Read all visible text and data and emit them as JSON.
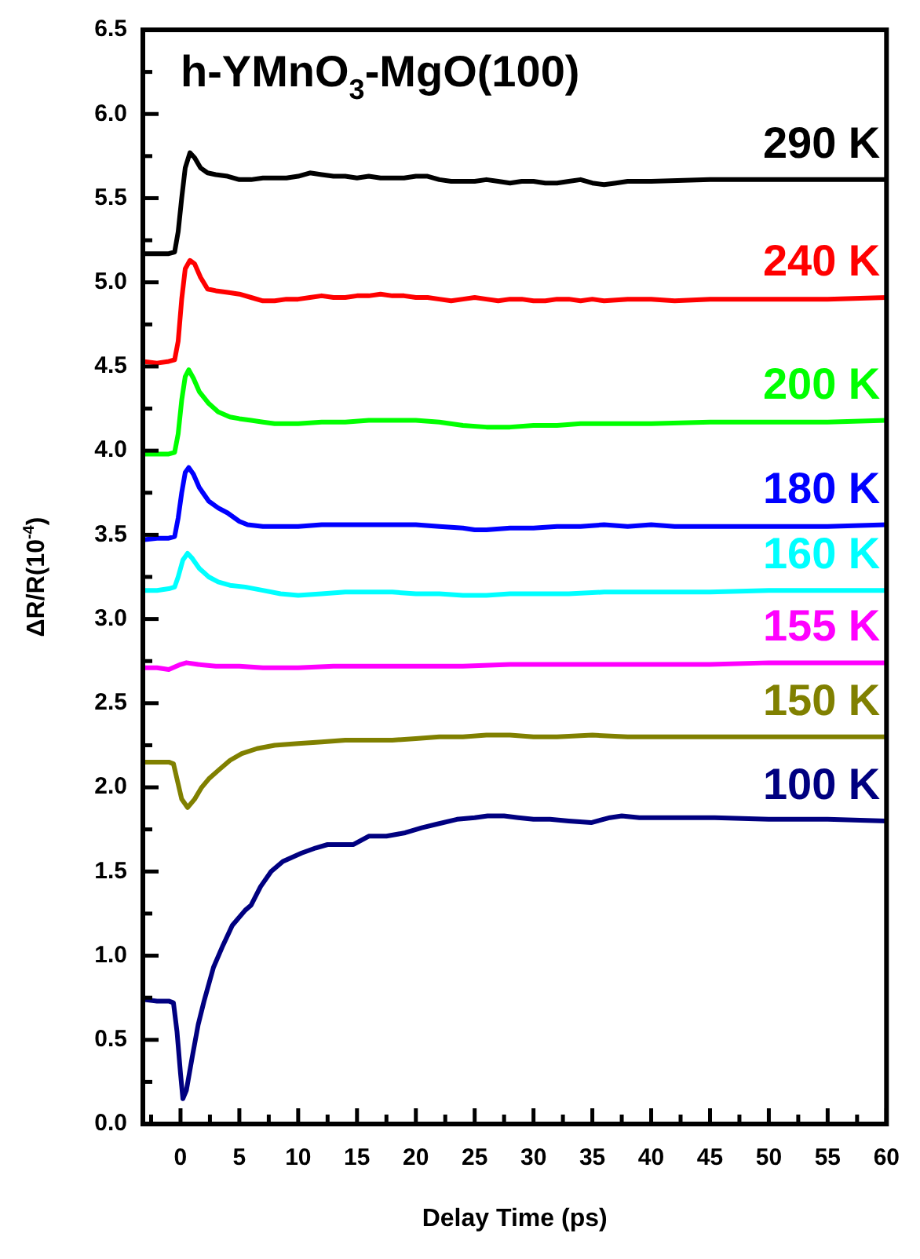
{
  "chart_data": {
    "type": "line",
    "title": "h-YMnO$_{3}$-MgO(100)",
    "xlabel": "Delay Time (ps)",
    "ylabel": "ΔR/R(10$^{-4}$)",
    "xlim": [
      -3.2,
      60
    ],
    "ylim": [
      0,
      6.5
    ],
    "xticks": [
      {
        "value": -2.5,
        "label": null
      },
      0,
      {
        "value": 2.5,
        "label": null
      },
      5,
      {
        "value": 7.5,
        "label": null
      },
      10,
      {
        "value": 12.5,
        "label": null
      },
      15,
      {
        "value": 17.5,
        "label": null
      },
      20,
      {
        "value": 22.5,
        "label": null
      },
      25,
      {
        "value": 27.5,
        "label": null
      },
      30,
      {
        "value": 32.5,
        "label": null
      },
      35,
      {
        "value": 37.5,
        "label": null
      },
      40,
      {
        "value": 42.5,
        "label": null
      },
      45,
      {
        "value": 47.5,
        "label": null
      },
      50,
      {
        "value": 52.5,
        "label": null
      },
      55,
      {
        "value": 57.5,
        "label": null
      },
      60
    ],
    "yticks": [
      {
        "value": 0,
        "label": "0.0"
      },
      {
        "value": 0.25,
        "label": null
      },
      {
        "value": 0.5,
        "label": "0.5"
      },
      {
        "value": 0.75,
        "label": null
      },
      {
        "value": 1,
        "label": "1.0"
      },
      {
        "value": 1.25,
        "label": null
      },
      {
        "value": 1.5,
        "label": "1.5"
      },
      {
        "value": 1.75,
        "label": null
      },
      {
        "value": 2,
        "label": "2.0"
      },
      {
        "value": 2.25,
        "label": null
      },
      {
        "value": 2.5,
        "label": "2.5"
      },
      {
        "value": 2.75,
        "label": null
      },
      {
        "value": 3,
        "label": "3.0"
      },
      {
        "value": 3.25,
        "label": null
      },
      {
        "value": 3.5,
        "label": "3.5"
      },
      {
        "value": 3.75,
        "label": null
      },
      {
        "value": 4,
        "label": "4.0"
      },
      {
        "value": 4.25,
        "label": null
      },
      {
        "value": 4.5,
        "label": "4.5"
      },
      {
        "value": 4.75,
        "label": null
      },
      {
        "value": 5,
        "label": "5.0"
      },
      {
        "value": 5.25,
        "label": null
      },
      {
        "value": 5.5,
        "label": "5.5"
      },
      {
        "value": 5.75,
        "label": null
      },
      {
        "value": 6,
        "label": "6.0"
      },
      {
        "value": 6.25,
        "label": null
      },
      {
        "value": 6.5,
        "label": "6.5"
      }
    ],
    "grid": false,
    "marker": "none",
    "line_style": "solid",
    "series": [
      {
        "name": "290 K",
        "color": "#000000",
        "x": [
          -3.2,
          -2,
          -1,
          -0.5,
          -0.2,
          0.1,
          0.4,
          0.8,
          1.2,
          1.7,
          2.3,
          3,
          4,
          5,
          6,
          7,
          8,
          9,
          10,
          11,
          12,
          13,
          14,
          15,
          16,
          17,
          18,
          19,
          20,
          21,
          22,
          23,
          24,
          25,
          26,
          27,
          28,
          29,
          30,
          31,
          32,
          33,
          34,
          35,
          36,
          37,
          38,
          40,
          45,
          50,
          55,
          60
        ],
        "values": [
          5.17,
          5.17,
          5.17,
          5.18,
          5.3,
          5.5,
          5.68,
          5.77,
          5.74,
          5.68,
          5.65,
          5.64,
          5.63,
          5.61,
          5.61,
          5.62,
          5.62,
          5.62,
          5.63,
          5.65,
          5.64,
          5.63,
          5.63,
          5.62,
          5.63,
          5.62,
          5.62,
          5.62,
          5.63,
          5.63,
          5.61,
          5.6,
          5.6,
          5.6,
          5.61,
          5.6,
          5.59,
          5.6,
          5.6,
          5.59,
          5.59,
          5.6,
          5.61,
          5.59,
          5.58,
          5.59,
          5.6,
          5.6,
          5.61,
          5.61,
          5.61,
          5.61
        ]
      },
      {
        "name": "240 K",
        "color": "#ff0000",
        "x": [
          -3.2,
          -2,
          -1,
          -0.5,
          -0.2,
          0.1,
          0.4,
          0.8,
          1.2,
          1.7,
          2.3,
          3,
          4,
          5,
          6,
          7,
          8,
          9,
          10,
          11,
          12,
          13,
          14,
          15,
          16,
          17,
          18,
          19,
          20,
          21,
          22,
          23,
          24,
          25,
          26,
          27,
          28,
          29,
          30,
          31,
          32,
          33,
          34,
          35,
          36,
          38,
          40,
          42,
          45,
          50,
          55,
          60
        ],
        "values": [
          4.53,
          4.52,
          4.53,
          4.54,
          4.65,
          4.9,
          5.08,
          5.13,
          5.11,
          5.03,
          4.96,
          4.95,
          4.94,
          4.93,
          4.91,
          4.89,
          4.89,
          4.9,
          4.9,
          4.91,
          4.92,
          4.91,
          4.91,
          4.92,
          4.92,
          4.93,
          4.92,
          4.92,
          4.91,
          4.91,
          4.9,
          4.89,
          4.9,
          4.91,
          4.9,
          4.89,
          4.9,
          4.9,
          4.89,
          4.89,
          4.9,
          4.9,
          4.89,
          4.9,
          4.89,
          4.9,
          4.9,
          4.89,
          4.9,
          4.9,
          4.9,
          4.91
        ]
      },
      {
        "name": "200 K",
        "color": "#00ff00",
        "x": [
          -3.2,
          -2,
          -1,
          -0.5,
          -0.2,
          0.1,
          0.4,
          0.7,
          1.1,
          1.6,
          2.4,
          3.2,
          4.2,
          5,
          6,
          7,
          8,
          9,
          10,
          12,
          14,
          16,
          18,
          20,
          22,
          24,
          26,
          28,
          30,
          32,
          34,
          36,
          38,
          40,
          45,
          50,
          55,
          60
        ],
        "values": [
          3.98,
          3.98,
          3.98,
          3.99,
          4.1,
          4.3,
          4.44,
          4.48,
          4.43,
          4.35,
          4.28,
          4.23,
          4.2,
          4.19,
          4.18,
          4.17,
          4.16,
          4.16,
          4.16,
          4.17,
          4.17,
          4.18,
          4.18,
          4.18,
          4.17,
          4.15,
          4.14,
          4.14,
          4.15,
          4.15,
          4.16,
          4.16,
          4.16,
          4.16,
          4.17,
          4.17,
          4.17,
          4.18
        ]
      },
      {
        "name": "180 K",
        "color": "#0000ff",
        "x": [
          -3.2,
          -2,
          -1,
          -0.5,
          -0.2,
          0.1,
          0.4,
          0.7,
          1.1,
          1.6,
          2.4,
          3.2,
          4,
          5,
          5.7,
          7,
          8,
          10,
          12,
          14,
          16,
          18,
          20,
          22,
          24,
          25,
          26,
          28,
          30,
          32,
          34,
          36,
          38,
          40,
          42,
          45,
          50,
          55,
          60
        ],
        "values": [
          3.47,
          3.48,
          3.48,
          3.49,
          3.6,
          3.75,
          3.87,
          3.9,
          3.86,
          3.78,
          3.7,
          3.66,
          3.63,
          3.58,
          3.56,
          3.55,
          3.55,
          3.55,
          3.56,
          3.56,
          3.56,
          3.56,
          3.56,
          3.55,
          3.54,
          3.53,
          3.53,
          3.54,
          3.54,
          3.55,
          3.55,
          3.56,
          3.55,
          3.56,
          3.55,
          3.55,
          3.55,
          3.55,
          3.56
        ]
      },
      {
        "name": "160 K",
        "color": "#00ffff",
        "x": [
          -3.2,
          -2,
          -1,
          -0.5,
          -0.2,
          0.2,
          0.6,
          1,
          1.6,
          2.4,
          3.2,
          4.2,
          5.5,
          7,
          8.5,
          10,
          12,
          14,
          16,
          18,
          20,
          22,
          24,
          26,
          28,
          30,
          33,
          36,
          40,
          45,
          50,
          55,
          60
        ],
        "values": [
          3.17,
          3.17,
          3.18,
          3.19,
          3.25,
          3.35,
          3.39,
          3.36,
          3.3,
          3.25,
          3.22,
          3.2,
          3.19,
          3.17,
          3.15,
          3.14,
          3.15,
          3.16,
          3.16,
          3.16,
          3.15,
          3.15,
          3.14,
          3.14,
          3.15,
          3.15,
          3.15,
          3.16,
          3.16,
          3.16,
          3.17,
          3.17,
          3.17
        ]
      },
      {
        "name": "155 K",
        "color": "#ff00ff",
        "x": [
          -3.2,
          -2,
          -1,
          0,
          0.5,
          1.5,
          3,
          5,
          7,
          10,
          13,
          16,
          20,
          24,
          28,
          32,
          36,
          40,
          45,
          50,
          55,
          60
        ],
        "values": [
          2.71,
          2.71,
          2.7,
          2.73,
          2.74,
          2.73,
          2.72,
          2.72,
          2.71,
          2.71,
          2.72,
          2.72,
          2.72,
          2.72,
          2.73,
          2.73,
          2.73,
          2.73,
          2.73,
          2.74,
          2.74,
          2.74
        ]
      },
      {
        "name": "150 K",
        "color": "#808000",
        "x": [
          -3.2,
          -2,
          -1,
          -0.6,
          -0.3,
          0.1,
          0.6,
          1.2,
          1.8,
          2.4,
          3.2,
          4.2,
          5.2,
          6.5,
          8,
          10,
          12,
          14,
          16,
          18,
          20,
          22,
          24,
          26,
          28,
          30,
          32,
          35,
          38,
          40,
          45,
          50,
          55,
          60
        ],
        "values": [
          2.15,
          2.15,
          2.15,
          2.14,
          2.05,
          1.93,
          1.88,
          1.93,
          2,
          2.05,
          2.1,
          2.16,
          2.2,
          2.23,
          2.25,
          2.26,
          2.27,
          2.28,
          2.28,
          2.28,
          2.29,
          2.3,
          2.3,
          2.31,
          2.31,
          2.3,
          2.3,
          2.31,
          2.3,
          2.3,
          2.3,
          2.3,
          2.3,
          2.3
        ]
      },
      {
        "name": "100 K",
        "color": "#000080",
        "x": [
          -3.2,
          -2,
          -1,
          -0.6,
          -0.3,
          0,
          0.2,
          0.5,
          1,
          1.5,
          2,
          2.8,
          3.6,
          4.4,
          5.5,
          6,
          6.8,
          7.7,
          8.7,
          10.3,
          11.5,
          12.5,
          13.7,
          14.7,
          16,
          17.5,
          19.1,
          20.5,
          21.7,
          23.5,
          25,
          26.1,
          27.5,
          28.7,
          30,
          31.4,
          33,
          34.9,
          36.5,
          37.5,
          39,
          40.1,
          45.4,
          50,
          55,
          60
        ],
        "values": [
          0.74,
          0.73,
          0.73,
          0.72,
          0.55,
          0.3,
          0.15,
          0.2,
          0.4,
          0.59,
          0.73,
          0.93,
          1.06,
          1.18,
          1.27,
          1.3,
          1.41,
          1.5,
          1.56,
          1.61,
          1.64,
          1.66,
          1.66,
          1.66,
          1.71,
          1.71,
          1.73,
          1.76,
          1.78,
          1.81,
          1.82,
          1.83,
          1.83,
          1.82,
          1.81,
          1.81,
          1.8,
          1.79,
          1.82,
          1.83,
          1.82,
          1.82,
          1.82,
          1.81,
          1.81,
          1.8
        ]
      }
    ]
  }
}
